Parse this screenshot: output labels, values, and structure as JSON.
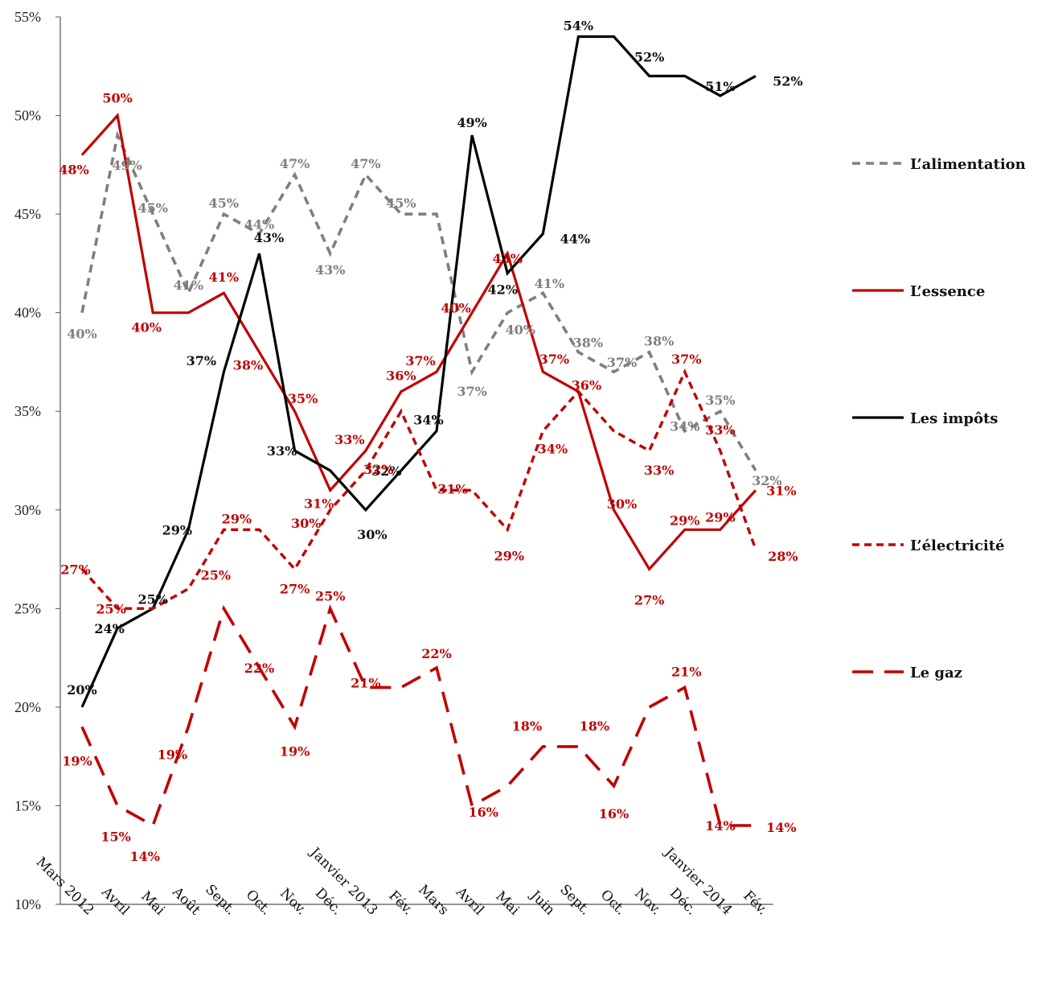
{
  "chart_data": {
    "type": "line",
    "categories": [
      "Mars 2012",
      "Avril",
      "Mai",
      "Août",
      "Sept.",
      "Oct.",
      "Nov.",
      "Déc.",
      "Janvier 2013",
      "Fév.",
      "Mars",
      "Avril",
      "Mai",
      "Juin",
      "Sept.",
      "Oct.",
      "Nov.",
      "Déc.",
      "Janvier 2014",
      "Fév."
    ],
    "ylim": [
      10,
      55
    ],
    "yticks": [
      "10%",
      "15%",
      "20%",
      "25%",
      "30%",
      "35%",
      "40%",
      "45%",
      "50%",
      "55%"
    ],
    "grid": false,
    "legend_position": "right",
    "series": [
      {
        "name": "L’alimentation",
        "color": "#7f7f7f",
        "style": "dashed",
        "values": [
          40,
          49,
          45,
          41,
          45,
          44,
          47,
          43,
          47,
          45,
          45,
          37,
          40,
          41,
          38,
          37,
          38,
          34,
          35,
          32
        ],
        "labels": [
          "40%",
          "49%",
          "45%",
          "41%",
          "45%",
          "44%",
          "47%",
          "43%",
          "47%",
          "45%",
          "",
          "37%",
          "40%",
          "41%",
          "38%",
          "37%",
          "38%",
          "34%",
          "35%",
          "32%"
        ]
      },
      {
        "name": "L’essence",
        "color": "#c00000",
        "style": "solid",
        "values": [
          48,
          50,
          40,
          40,
          41,
          38,
          35,
          31,
          33,
          36,
          37,
          40,
          43,
          37,
          36,
          30,
          27,
          29,
          29,
          31
        ],
        "labels": [
          "48%",
          "50%",
          "40%",
          "",
          "41%",
          "38%",
          "35%",
          "31%",
          "33%",
          "36%",
          "37%",
          "40%",
          "43%",
          "37%",
          "36%",
          "30%",
          "27%",
          "29%",
          "29%",
          "31%"
        ]
      },
      {
        "name": "Les impôts",
        "color": "#000000",
        "style": "solid",
        "values": [
          20,
          24,
          25,
          29,
          37,
          43,
          33,
          32,
          30,
          32,
          34,
          49,
          42,
          44,
          54,
          54,
          52,
          52,
          51,
          52
        ],
        "labels": [
          "20%",
          "24%",
          "25%",
          "29%",
          "37%",
          "43%",
          "33%",
          "",
          "30%",
          "32%",
          "34%",
          "49%",
          "42%",
          "44%",
          "54%",
          "",
          "52%",
          "",
          "51%",
          "52%"
        ]
      },
      {
        "name": "L’électricité",
        "color": "#c00000",
        "style": "short-dash",
        "values": [
          27,
          25,
          25,
          26,
          29,
          29,
          27,
          30,
          32,
          35,
          31,
          31,
          29,
          34,
          36,
          34,
          33,
          37,
          33,
          28
        ],
        "labels": [
          "27%",
          "25%",
          "",
          "",
          "29%",
          "",
          "27%",
          "30%",
          "32%",
          "",
          "31%",
          "",
          "29%",
          "34%",
          "",
          "",
          "33%",
          "37%",
          "33%",
          "28%"
        ]
      },
      {
        "name": "Le gaz",
        "color": "#c00000",
        "style": "long-dash",
        "values": [
          19,
          15,
          14,
          19,
          25,
          22,
          19,
          25,
          21,
          21,
          22,
          15,
          16,
          18,
          18,
          16,
          20,
          21,
          14,
          14
        ],
        "labels": [
          "19%",
          "15%",
          "14%",
          "19%",
          "25%",
          "22%",
          "19%",
          "25%",
          "21%",
          "",
          "22%",
          "",
          "16%",
          "18%",
          "18%",
          "16%",
          "",
          "21%",
          "14%",
          "14%"
        ]
      }
    ]
  }
}
